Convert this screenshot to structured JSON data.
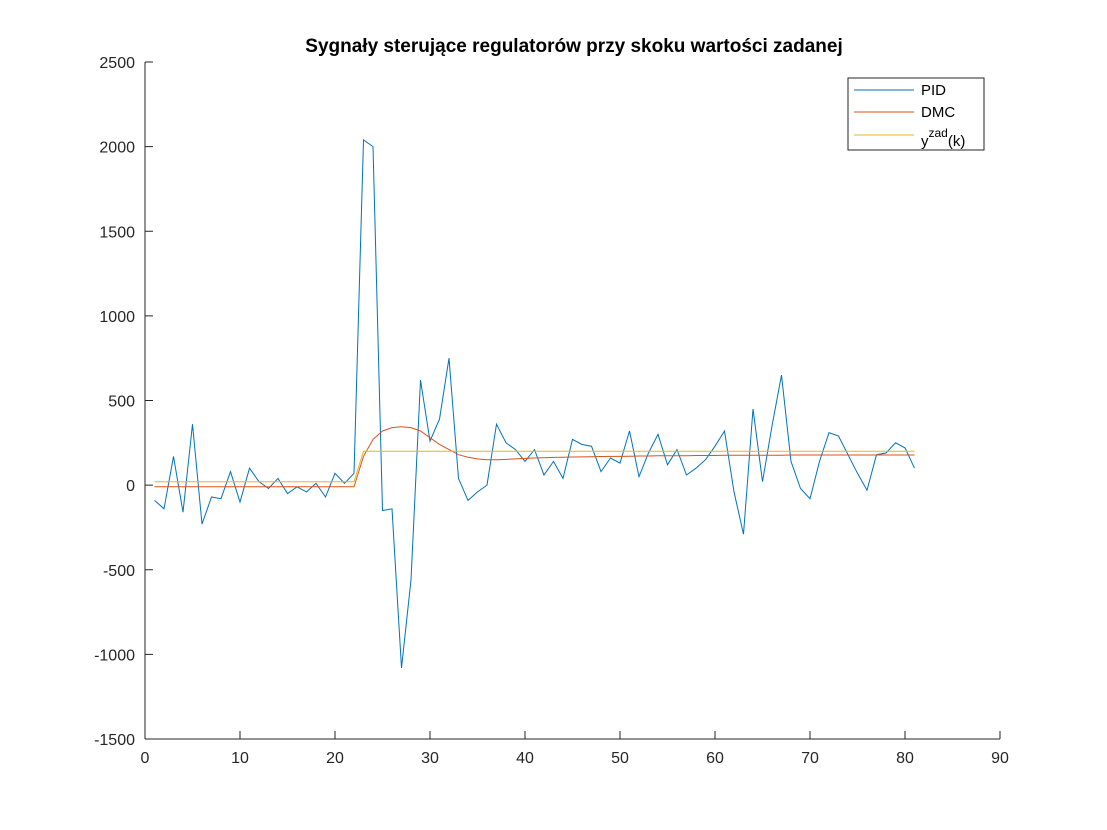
{
  "chart_data": {
    "type": "line",
    "title": "Sygnały sterujące regulatorów przy skoku wartości zadanej",
    "xlabel": "",
    "ylabel": "",
    "xlim": [
      0,
      90
    ],
    "ylim": [
      -1500,
      2500
    ],
    "xticks": [
      "0",
      "10",
      "20",
      "30",
      "40",
      "50",
      "60",
      "70",
      "80",
      "90"
    ],
    "yticks": [
      "2500",
      "2000",
      "1500",
      "1000",
      "500",
      "0",
      "-500",
      "-1000",
      "-1500"
    ],
    "grid": false,
    "legend_position": "top-right",
    "x": [
      1,
      2,
      3,
      4,
      5,
      6,
      7,
      8,
      9,
      10,
      11,
      12,
      13,
      14,
      15,
      16,
      17,
      18,
      19,
      20,
      21,
      22,
      23,
      24,
      25,
      26,
      27,
      28,
      29,
      30,
      31,
      32,
      33,
      34,
      35,
      36,
      37,
      38,
      39,
      40,
      41,
      42,
      43,
      44,
      45,
      46,
      47,
      48,
      49,
      50,
      51,
      52,
      53,
      54,
      55,
      56,
      57,
      58,
      59,
      60,
      61,
      62,
      63,
      64,
      65,
      66,
      67,
      68,
      69,
      70,
      71,
      72,
      73,
      74,
      75,
      76,
      77,
      78,
      79,
      80,
      81
    ],
    "series": [
      {
        "name": "PID",
        "color": "#0072BD",
        "values": [
          -90,
          -140,
          170,
          -160,
          360,
          -230,
          -70,
          -80,
          80,
          -100,
          100,
          20,
          -20,
          40,
          -50,
          -10,
          -40,
          10,
          -70,
          70,
          10,
          70,
          2040,
          2000,
          -150,
          -140,
          -1080,
          -560,
          620,
          260,
          390,
          750,
          40,
          -90,
          -40,
          0,
          360,
          250,
          210,
          140,
          210,
          60,
          140,
          40,
          270,
          240,
          230,
          80,
          160,
          130,
          320,
          50,
          190,
          300,
          120,
          210,
          60,
          100,
          150,
          230,
          320,
          -40,
          -290,
          450,
          20,
          350,
          650,
          140,
          -20,
          -80,
          140,
          310,
          290,
          180,
          70,
          -30,
          180,
          190,
          250,
          220,
          100
        ]
      },
      {
        "name": "DMC",
        "color": "#D95319",
        "values": [
          -10,
          -10,
          -10,
          -10,
          -10,
          -10,
          -10,
          -10,
          -10,
          -10,
          -10,
          -10,
          -10,
          -10,
          -10,
          -10,
          -10,
          -10,
          -10,
          -10,
          -10,
          -10,
          170,
          270,
          320,
          340,
          345,
          340,
          320,
          280,
          240,
          210,
          180,
          165,
          155,
          150,
          150,
          152,
          155,
          158,
          160,
          162,
          164,
          165,
          166,
          167,
          168,
          169,
          170,
          170,
          171,
          172,
          172,
          173,
          173,
          174,
          174,
          175,
          175,
          175,
          176,
          176,
          176,
          177,
          177,
          177,
          177,
          178,
          178,
          178,
          178,
          178,
          178,
          178,
          178,
          178,
          178,
          178,
          178,
          178,
          178
        ]
      },
      {
        "name": "y^zad(k)",
        "color": "#EDB120",
        "values": [
          20,
          20,
          20,
          20,
          20,
          20,
          20,
          20,
          20,
          20,
          20,
          20,
          20,
          20,
          20,
          20,
          20,
          20,
          20,
          20,
          20,
          20,
          200,
          200,
          200,
          200,
          200,
          200,
          200,
          200,
          200,
          200,
          200,
          200,
          200,
          200,
          200,
          200,
          200,
          200,
          200,
          200,
          200,
          200,
          200,
          200,
          200,
          200,
          200,
          200,
          200,
          200,
          200,
          200,
          200,
          200,
          200,
          200,
          200,
          200,
          200,
          200,
          200,
          200,
          200,
          200,
          200,
          200,
          200,
          200,
          200,
          200,
          200,
          200,
          200,
          200,
          200,
          200,
          200,
          200,
          200
        ]
      }
    ],
    "legend": {
      "entries": [
        {
          "label": "PID",
          "color": "#0072BD"
        },
        {
          "label": "DMC",
          "color": "#D95319"
        },
        {
          "label_base": "y",
          "label_sup": "zad",
          "label_tail": "(k)",
          "color": "#EDB120"
        }
      ]
    }
  }
}
